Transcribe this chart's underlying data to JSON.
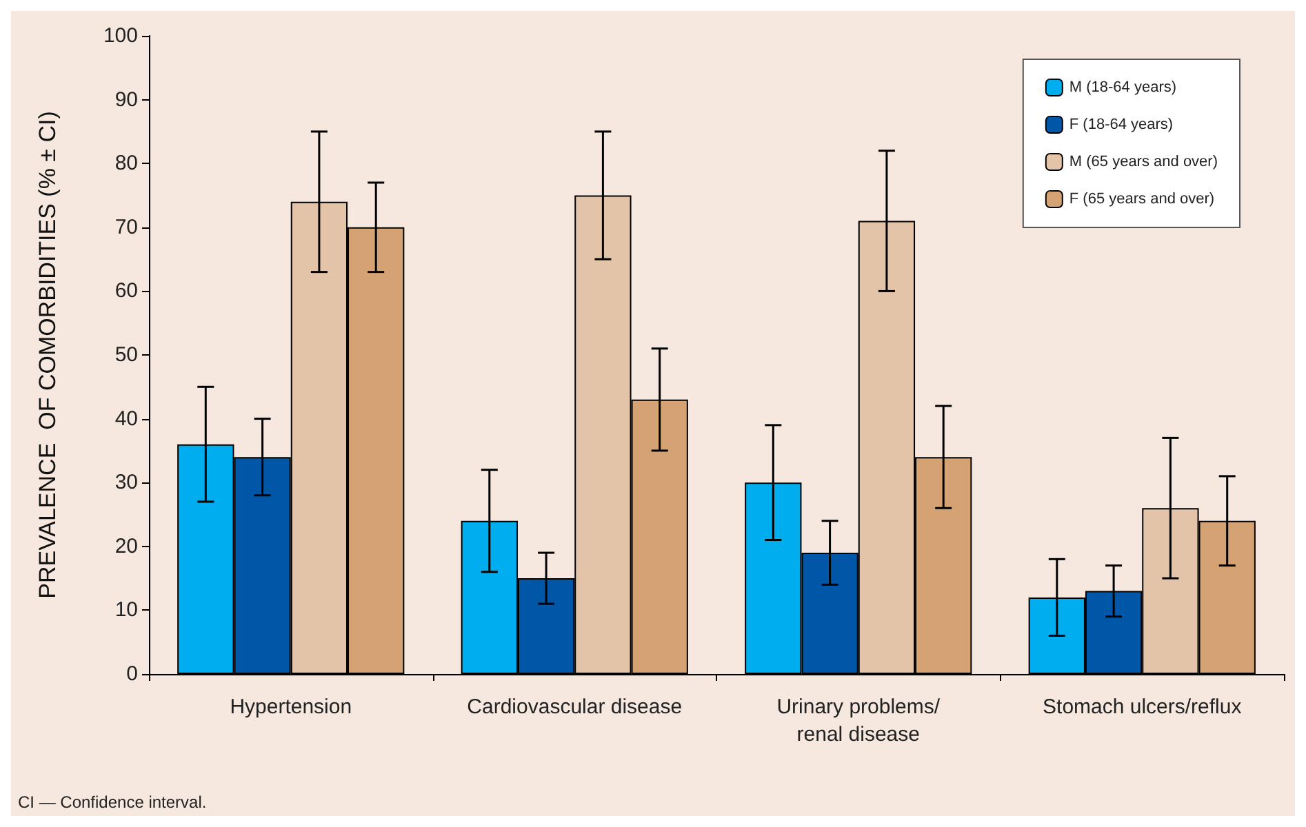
{
  "chart_data": {
    "type": "bar",
    "ylabel": "PREVALENCE  OF COMORBIDITIES (% ± CI)",
    "categories": [
      "Hypertension",
      "Cardiovascular disease",
      "Urinary problems/\nrenal disease",
      "Stomach ulcers/reflux"
    ],
    "series": [
      {
        "name": "M (18-64 years)",
        "color": "#00aeef",
        "values": [
          36,
          24,
          30,
          12
        ],
        "errors": [
          [
            27,
            45
          ],
          [
            16,
            32
          ],
          [
            21,
            39
          ],
          [
            6,
            18
          ]
        ]
      },
      {
        "name": "F (18-64 years)",
        "color": "#0057a8",
        "values": [
          34,
          15,
          19,
          13
        ],
        "errors": [
          [
            28,
            40
          ],
          [
            11,
            19
          ],
          [
            14,
            24
          ],
          [
            9,
            17
          ]
        ]
      },
      {
        "name": "M (65 years and over)",
        "color": "#e3c4a8",
        "values": [
          74,
          75,
          71,
          26
        ],
        "errors": [
          [
            63,
            85
          ],
          [
            65,
            85
          ],
          [
            60,
            82
          ],
          [
            15,
            37
          ]
        ]
      },
      {
        "name": "F (65 years and over)",
        "color": "#d5a373",
        "values": [
          70,
          43,
          34,
          24
        ],
        "errors": [
          [
            63,
            77
          ],
          [
            35,
            51
          ],
          [
            26,
            42
          ],
          [
            17,
            31
          ]
        ]
      }
    ],
    "ylim": [
      0,
      100
    ],
    "yticks": [
      0,
      10,
      20,
      30,
      40,
      50,
      60,
      70,
      80,
      90,
      100
    ],
    "grid": false,
    "legend": "top right",
    "annotations": [
      "CI — Confidence interval."
    ]
  }
}
